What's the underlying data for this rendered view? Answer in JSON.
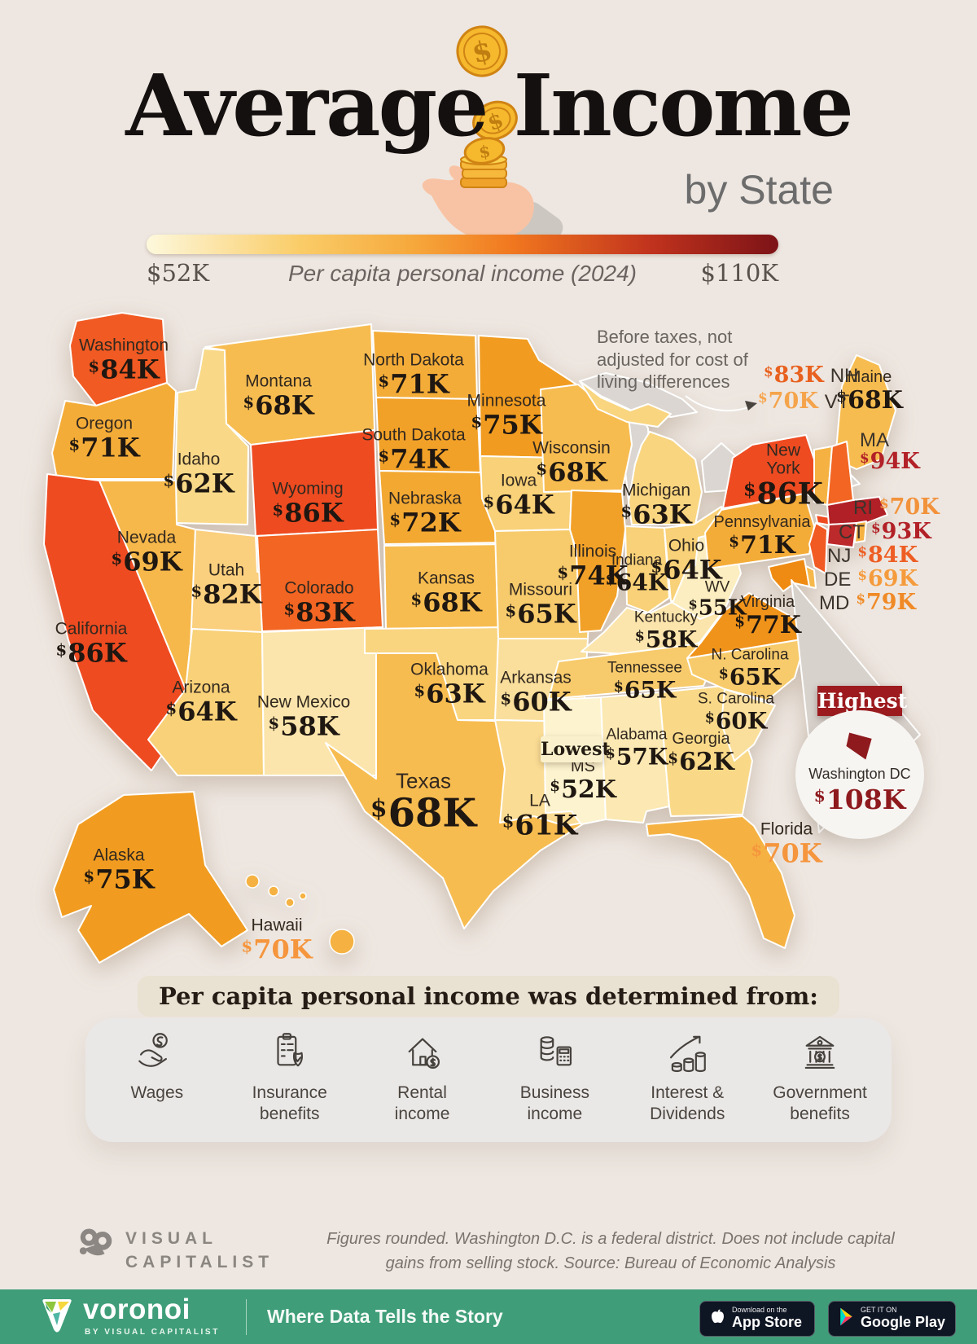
{
  "header": {
    "title": "Average Income",
    "subtitle": "by State",
    "icon": "falling-coins-hand-icon",
    "legend": {
      "min_label": "$52K",
      "max_label": "$110K",
      "caption": "Per capita personal income (2024)",
      "gradient": [
        "#FDF8DC",
        "#FACD69",
        "#F6A93C",
        "#F1771F",
        "#C0321D",
        "#7C1317"
      ]
    }
  },
  "annotation": {
    "text": "Before taxes, not adjusted for cost of living differences"
  },
  "map": {
    "lowest_badge": "Lowest",
    "highest": {
      "badge": "Highest",
      "name": "Washington DC",
      "value": "$108K",
      "color": "#8E1A1E",
      "icon": "dc-shape-icon"
    },
    "states": [
      {
        "id": "WA",
        "name": "Washington",
        "value": "$84K",
        "fill": "#F15A22"
      },
      {
        "id": "OR",
        "name": "Oregon",
        "value": "$71K",
        "fill": "#F4AC38"
      },
      {
        "id": "CA",
        "name": "California",
        "value": "$86K",
        "fill": "#EF4B21"
      },
      {
        "id": "NV",
        "name": "Nevada",
        "value": "$69K",
        "fill": "#F6B84A"
      },
      {
        "id": "ID",
        "name": "Idaho",
        "value": "$62K",
        "fill": "#F9D988"
      },
      {
        "id": "MT",
        "name": "Montana",
        "value": "$68K",
        "fill": "#F7BC50"
      },
      {
        "id": "WY",
        "name": "Wyoming",
        "value": "$86K",
        "fill": "#EF4B21"
      },
      {
        "id": "UT",
        "name": "Utah",
        "value": "$82K",
        "fill": "#FACF7E"
      },
      {
        "id": "CO",
        "name": "Colorado",
        "value": "$83K",
        "fill": "#F26522"
      },
      {
        "id": "AZ",
        "name": "Arizona",
        "value": "$64K",
        "fill": "#F8D178"
      },
      {
        "id": "NM",
        "name": "New Mexico",
        "value": "$58K",
        "fill": "#FBE5AC"
      },
      {
        "id": "ND",
        "name": "North Dakota",
        "value": "$71K",
        "fill": "#F4AC38"
      },
      {
        "id": "SD",
        "name": "South Dakota",
        "value": "$74K",
        "fill": "#F2A128"
      },
      {
        "id": "NE",
        "name": "Nebraska",
        "value": "$72K",
        "fill": "#F3A832"
      },
      {
        "id": "KS",
        "name": "Kansas",
        "value": "$68K",
        "fill": "#F7BC50"
      },
      {
        "id": "OK",
        "name": "Oklahoma",
        "value": "$63K",
        "fill": "#F9D580"
      },
      {
        "id": "TX",
        "name": "Texas",
        "value": "$68K",
        "fill": "#F7BC50"
      },
      {
        "id": "MN",
        "name": "Minnesota",
        "value": "$75K",
        "fill": "#F19C20"
      },
      {
        "id": "IA",
        "name": "Iowa",
        "value": "$64K",
        "fill": "#F8D178"
      },
      {
        "id": "MO",
        "name": "Missouri",
        "value": "$65K",
        "fill": "#F7CB6C"
      },
      {
        "id": "AR",
        "name": "Arkansas",
        "value": "$60K",
        "fill": "#FADF9C"
      },
      {
        "id": "LA",
        "name": "LA",
        "value": "$61K",
        "fill": "#FADC94"
      },
      {
        "id": "WI",
        "name": "Wisconsin",
        "value": "$68K",
        "fill": "#F7BC50"
      },
      {
        "id": "IL",
        "name": "Illinois",
        "value": "$74K",
        "fill": "#F2A128"
      },
      {
        "id": "MI",
        "name": "Michigan",
        "value": "$63K",
        "fill": "#F9D580"
      },
      {
        "id": "IN",
        "name": "Indiana",
        "value": "$64K",
        "fill": "#F8D178"
      },
      {
        "id": "OH",
        "name": "Ohio",
        "value": "$64K",
        "fill": "#F8D178"
      },
      {
        "id": "KY",
        "name": "Kentucky",
        "value": "$58K",
        "fill": "#FBE5AC"
      },
      {
        "id": "TN",
        "name": "Tennessee",
        "value": "$65K",
        "fill": "#F7CB6C"
      },
      {
        "id": "MS",
        "name": "MS",
        "value": "$52K",
        "fill": "#FDF3CE"
      },
      {
        "id": "AL",
        "name": "Alabama",
        "value": "$57K",
        "fill": "#FBE8B2"
      },
      {
        "id": "GA",
        "name": "Georgia",
        "value": "$62K",
        "fill": "#F9D988"
      },
      {
        "id": "FL",
        "name": "Florida",
        "value": "$70K",
        "fill": "#F5B242",
        "value_color": "#F5953D"
      },
      {
        "id": "SC",
        "name": "S. Carolina",
        "value": "$60K",
        "fill": "#FADF9C"
      },
      {
        "id": "NC",
        "name": "N. Carolina",
        "value": "$65K",
        "fill": "#F7CB6C"
      },
      {
        "id": "VA",
        "name": "Virginia",
        "value": "$77K",
        "fill": "#F0931A"
      },
      {
        "id": "WV",
        "name": "WV",
        "value": "$55K",
        "fill": "#FCEEC0"
      },
      {
        "id": "PA",
        "name": "Pennsylvania",
        "value": "$71K",
        "fill": "#F4AC38"
      },
      {
        "id": "NY",
        "name": "New York",
        "value": "$86K",
        "fill": "#EF4B21"
      },
      {
        "id": "ME",
        "name": "Maine",
        "value": "$68K",
        "fill": "#F7BC50"
      },
      {
        "id": "AK",
        "name": "Alaska",
        "value": "$75K",
        "fill": "#F19C20"
      },
      {
        "id": "HI",
        "name": "Hawaii",
        "value": "$70K",
        "fill": "#F5B242",
        "value_color": "#F5953D"
      },
      {
        "id": "NH",
        "name": "NH",
        "value": "$83K",
        "fill": "#F26522"
      },
      {
        "id": "VT",
        "name": "VT",
        "value": "$70K",
        "fill": "#F5B242"
      },
      {
        "id": "MA",
        "name": "MA",
        "value": "$94K",
        "fill": "#B02026"
      },
      {
        "id": "RI",
        "name": "RI",
        "value": "$70K",
        "fill": "#F5B242"
      },
      {
        "id": "CT",
        "name": "CT",
        "value": "$93K",
        "fill": "#BC2A2B"
      },
      {
        "id": "NJ",
        "name": "NJ",
        "value": "$84K",
        "fill": "#F15A22"
      },
      {
        "id": "DE",
        "name": "DE",
        "value": "$69K",
        "fill": "#F6B84A"
      },
      {
        "id": "MD",
        "name": "MD",
        "value": "$79K",
        "fill": "#EF8B12"
      }
    ],
    "ne_list": [
      {
        "id": "NH",
        "color": "#E8611F"
      },
      {
        "id": "VT",
        "color": "#F5A44C"
      },
      {
        "id": "MA",
        "color": "#B22127"
      },
      {
        "id": "RI",
        "color": "#F2923B"
      },
      {
        "id": "CT",
        "color": "#B22127"
      },
      {
        "id": "NJ",
        "color": "#EE5E24"
      },
      {
        "id": "DE",
        "color": "#F59B3C"
      },
      {
        "id": "MD",
        "color": "#F08A26"
      }
    ]
  },
  "sources_panel": {
    "heading": "Per capita personal income was determined from:",
    "items": [
      {
        "icon": "hand-coin-icon",
        "label": "Wages"
      },
      {
        "icon": "clipboard-shield-icon",
        "label": "Insurance benefits"
      },
      {
        "icon": "house-dollar-icon",
        "label": "Rental income"
      },
      {
        "icon": "coins-calculator-icon",
        "label": "Business income"
      },
      {
        "icon": "growth-coins-icon",
        "label": "Interest & Dividends"
      },
      {
        "icon": "bank-icon",
        "label": "Government benefits"
      }
    ]
  },
  "footer": {
    "brand": {
      "icon": "visual-capitalist-logo",
      "lines": [
        "VISUAL",
        "CAPITALIST"
      ]
    },
    "disclaimer": "Figures rounded. Washington D.C. is a federal district. Does not include capital gains from selling stock. Source: Bureau of Economic Analysis",
    "bar": {
      "color": "#3F9E79",
      "logo_icon": "voronoi-logo",
      "logo_text": "voronoi",
      "logo_sub": "BY VISUAL CAPITALIST",
      "tagline": "Where Data Tells the Story",
      "badges": [
        {
          "icon": "apple-icon",
          "line1": "Download on the",
          "line2": "App Store"
        },
        {
          "icon": "play-icon",
          "line1": "GET IT ON",
          "line2": "Google Play"
        }
      ]
    }
  },
  "chart_data": {
    "type": "heatmap",
    "title": "Average Income by State",
    "subtitle": "Per capita personal income (2024)",
    "unit": "USD thousands per capita",
    "scale": {
      "min": 52,
      "max": 110,
      "min_label": "$52K",
      "max_label": "$110K"
    },
    "legend_position": "top",
    "note": "Before taxes, not adjusted for cost of living differences",
    "source": "Bureau of Economic Analysis",
    "categories": [
      "Washington",
      "Oregon",
      "California",
      "Nevada",
      "Idaho",
      "Montana",
      "Wyoming",
      "Utah",
      "Colorado",
      "Arizona",
      "New Mexico",
      "North Dakota",
      "South Dakota",
      "Nebraska",
      "Kansas",
      "Oklahoma",
      "Texas",
      "Minnesota",
      "Iowa",
      "Missouri",
      "Arkansas",
      "Louisiana",
      "Wisconsin",
      "Illinois",
      "Michigan",
      "Indiana",
      "Ohio",
      "Kentucky",
      "Tennessee",
      "Mississippi",
      "Alabama",
      "Georgia",
      "Florida",
      "South Carolina",
      "North Carolina",
      "Virginia",
      "West Virginia",
      "Pennsylvania",
      "New York",
      "Maine",
      "New Hampshire",
      "Vermont",
      "Massachusetts",
      "Rhode Island",
      "Connecticut",
      "New Jersey",
      "Delaware",
      "Maryland",
      "Alaska",
      "Hawaii",
      "Washington DC"
    ],
    "values": [
      84,
      71,
      86,
      69,
      62,
      68,
      86,
      82,
      83,
      64,
      58,
      71,
      74,
      72,
      68,
      63,
      68,
      75,
      64,
      65,
      60,
      61,
      68,
      74,
      63,
      64,
      64,
      58,
      65,
      52,
      57,
      62,
      70,
      60,
      65,
      77,
      55,
      71,
      86,
      68,
      83,
      70,
      94,
      70,
      93,
      84,
      69,
      79,
      75,
      70,
      108
    ],
    "highest": {
      "state": "Washington DC",
      "value": 108
    },
    "lowest": {
      "state": "Mississippi",
      "value": 52
    }
  }
}
